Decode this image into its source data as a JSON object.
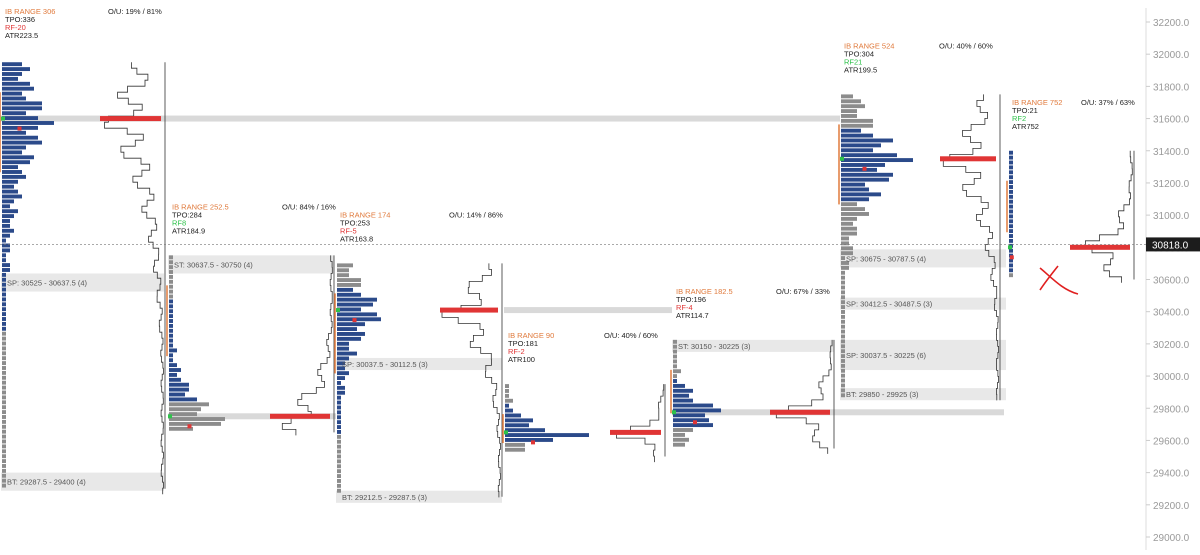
{
  "colors": {
    "tpo_blue": "#2b4a8a",
    "tpo_gray": "#8c8c8c",
    "poc_red": "#e03535",
    "green_marker": "#2ec24a",
    "ib_orange": "#e07a3c",
    "rf_red": "#e03535",
    "rf_green": "#2ec24a",
    "band_gray": "#e8e8e8",
    "poc_band": "#d9d9d9",
    "axis_text": "#9a9a9a",
    "current_bg": "#1c1c1c",
    "sketch_red": "#e02020"
  },
  "chart_data": {
    "type": "market-profile",
    "y_axis": {
      "ticks": [
        "32200.0",
        "32000.0",
        "31800.0",
        "31600.0",
        "31400.0",
        "31200.0",
        "31000.0",
        "30800.0",
        "30600.0",
        "30400.0",
        "30200.0",
        "30000.0",
        "29800.0",
        "29600.0",
        "29400.0",
        "29200.0",
        "29000.0"
      ],
      "tick_values": [
        32200,
        32000,
        31800,
        31600,
        31400,
        31200,
        31000,
        30800,
        30600,
        30400,
        30200,
        30000,
        29800,
        29600,
        29400,
        29200,
        29000
      ],
      "ylim": [
        28950,
        32250
      ],
      "current_price": 30818,
      "current_price_label": "30818.0"
    },
    "poc_lines": [
      31600,
      29750,
      30410,
      29775
    ],
    "sessions": [
      {
        "ib": "IB RANGE 306",
        "tpo": "TPO:336",
        "rf": "RF-20",
        "rf_color": "red",
        "atr": "ATR223.5",
        "ou": "O/U: 19% / 81%",
        "profile_top": 31950,
        "profile_bottom": 29300,
        "poc": 31600,
        "max_width": 55,
        "blue_top": 31950,
        "blue_bottom": 30300,
        "bands": [
          {
            "label": "SP: 30525 - 30637.5 (4)",
            "from": 30525,
            "to": 30637.5
          },
          {
            "label": "BT: 29287.5 - 29400 (4)",
            "from": 29287.5,
            "to": 29400
          }
        ]
      },
      {
        "ib": "IB RANGE 252.5",
        "tpo": "TPO:284",
        "rf": "RF8",
        "rf_color": "green",
        "atr": "ATR184.9",
        "ou": "O/U: 84% / 16%",
        "profile_top": 30750,
        "profile_bottom": 29650,
        "poc": 29750,
        "max_width": 65,
        "blue_top": 30500,
        "blue_bottom": 29850,
        "bands": [
          {
            "label": "ST: 30637.5 - 30750 (4)",
            "from": 30637.5,
            "to": 30750
          }
        ]
      },
      {
        "ib": "IB RANGE 174",
        "tpo": "TPO:253",
        "rf": "RF-5",
        "rf_color": "red",
        "atr": "ATR163.8",
        "ou": "O/U: 14% / 86%",
        "profile_top": 30700,
        "profile_bottom": 29250,
        "poc": 30410,
        "max_width": 55,
        "blue_top": 30550,
        "blue_bottom": 29650,
        "bands": [
          {
            "label": "SP: 30037.5 - 30112.5 (3)",
            "from": 30037.5,
            "to": 30112.5
          },
          {
            "label": "BT: 29212.5 - 29287.5 (3)",
            "from": 29212.5,
            "to": 29287.5
          }
        ]
      },
      {
        "ib": "IB RANGE 90",
        "tpo": "TPO:181",
        "rf": "RF-2",
        "rf_color": "red",
        "atr": "ATR100",
        "ou": "O/U: 40% / 60%",
        "profile_top": 29950,
        "profile_bottom": 29500,
        "poc": 29650,
        "max_width": 90,
        "blue_top": 29850,
        "blue_bottom": 29600,
        "bands": []
      },
      {
        "ib": "IB RANGE 182.5",
        "tpo": "TPO:196",
        "rf": "RF-4",
        "rf_color": "red",
        "atr": "ATR114.7",
        "ou": "O/U: 67% / 33%",
        "profile_top": 30225,
        "profile_bottom": 29550,
        "poc": 29775,
        "max_width": 70,
        "blue_top": 30000,
        "blue_bottom": 29700,
        "bands": [
          {
            "label": "ST: 30150 - 30225 (3)",
            "from": 30150,
            "to": 30225
          }
        ]
      },
      {
        "ib": "IB RANGE 524",
        "tpo": "TPO:304",
        "rf": "RF21",
        "rf_color": "green",
        "atr": "ATR199.5",
        "ou": "O/U: 40% / 60%",
        "profile_top": 31750,
        "profile_bottom": 29850,
        "poc": 31350,
        "max_width": 75,
        "blue_top": 31550,
        "blue_bottom": 31100,
        "bands": [
          {
            "label": "SP: 30675 - 30787.5 (4)",
            "from": 30675,
            "to": 30787.5
          },
          {
            "label": "SP: 30412.5 - 30487.5 (3)",
            "from": 30412.5,
            "to": 30487.5
          },
          {
            "label": "SP: 30037.5 - 30225 (6)",
            "from": 30037.5,
            "to": 30225
          },
          {
            "label": "BT: 29850 - 29925 (3)",
            "from": 29850,
            "to": 29925
          }
        ]
      },
      {
        "ib": "IB RANGE 752",
        "tpo": "TPO:21",
        "rf": "RF2",
        "rf_color": "green",
        "atr": "ATR752",
        "ou": "O/U: 37% / 63%",
        "profile_top": 31400,
        "profile_bottom": 30600,
        "poc": 30800,
        "max_width": 6,
        "blue_top": 31400,
        "blue_bottom": 30650,
        "bands": []
      }
    ]
  }
}
